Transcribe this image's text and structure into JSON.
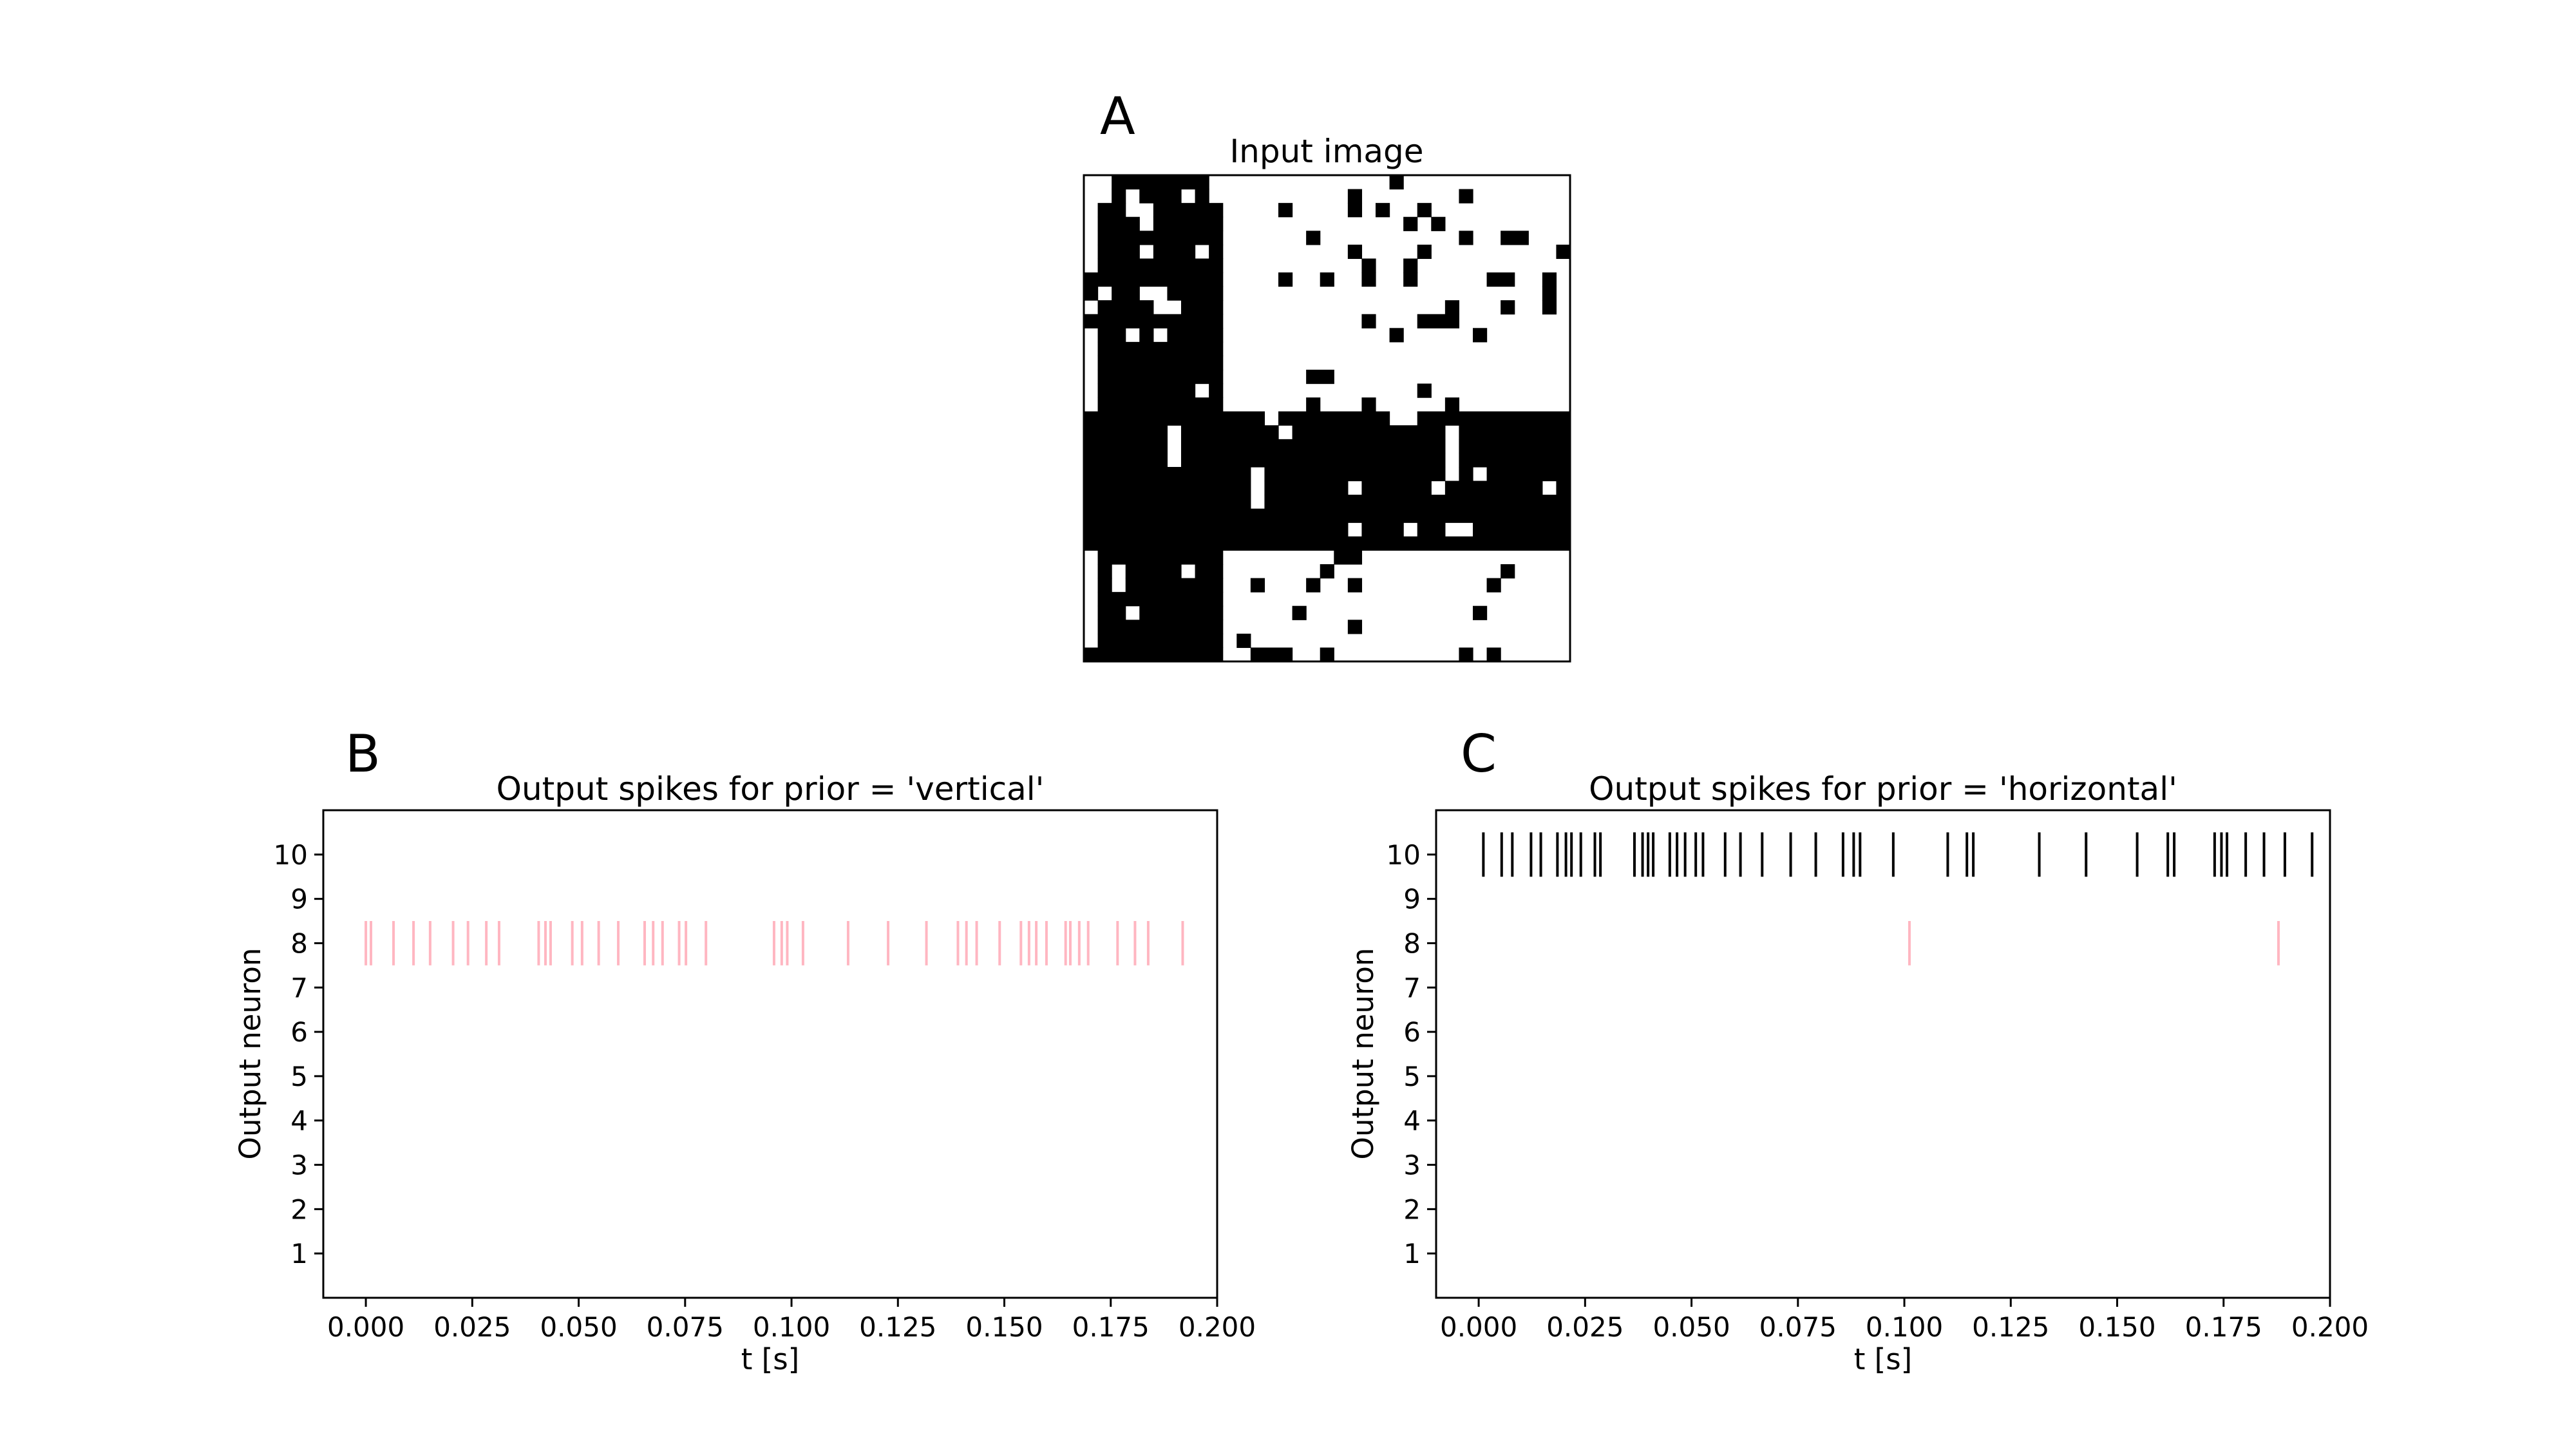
{
  "panels": {
    "a": "A",
    "b": "B",
    "c": "C"
  },
  "colors": {
    "spike_pink": "#ffb6c1",
    "spike_black": "#000000",
    "pixel_on": "#000000",
    "pixel_off": "#ffffff"
  },
  "chart_data": [
    {
      "type": "heatmap",
      "title": "Input image",
      "grid_size": [
        35,
        35
      ],
      "encoding": "black pixels listed per row as inclusive column ranges [start, end]; rows/cols indexed top-left",
      "rows": [
        [
          [
            2,
            8
          ],
          [
            22,
            22
          ]
        ],
        [
          [
            2,
            2
          ],
          [
            4,
            6
          ],
          [
            8,
            8
          ],
          [
            19,
            19
          ],
          [
            27,
            27
          ]
        ],
        [
          [
            1,
            2
          ],
          [
            5,
            9
          ],
          [
            14,
            14
          ],
          [
            19,
            19
          ],
          [
            21,
            21
          ],
          [
            24,
            24
          ]
        ],
        [
          [
            1,
            3
          ],
          [
            5,
            9
          ],
          [
            23,
            23
          ],
          [
            25,
            25
          ]
        ],
        [
          [
            1,
            9
          ],
          [
            16,
            16
          ],
          [
            27,
            27
          ],
          [
            30,
            31
          ]
        ],
        [
          [
            1,
            3
          ],
          [
            5,
            7
          ],
          [
            9,
            9
          ],
          [
            19,
            19
          ],
          [
            24,
            24
          ],
          [
            34,
            34
          ]
        ],
        [
          [
            1,
            9
          ],
          [
            20,
            20
          ],
          [
            23,
            23
          ]
        ],
        [
          [
            0,
            9
          ],
          [
            14,
            14
          ],
          [
            17,
            17
          ],
          [
            20,
            20
          ],
          [
            23,
            23
          ],
          [
            29,
            30
          ],
          [
            33,
            33
          ]
        ],
        [
          [
            0,
            0
          ],
          [
            2,
            3
          ],
          [
            6,
            9
          ],
          [
            33,
            33
          ]
        ],
        [
          [
            1,
            4
          ],
          [
            7,
            9
          ],
          [
            26,
            26
          ],
          [
            30,
            30
          ],
          [
            33,
            33
          ]
        ],
        [
          [
            0,
            9
          ],
          [
            20,
            20
          ],
          [
            24,
            26
          ]
        ],
        [
          [
            1,
            2
          ],
          [
            4,
            4
          ],
          [
            6,
            9
          ],
          [
            22,
            22
          ],
          [
            28,
            28
          ]
        ],
        [
          [
            1,
            9
          ]
        ],
        [
          [
            1,
            9
          ]
        ],
        [
          [
            1,
            9
          ],
          [
            16,
            17
          ]
        ],
        [
          [
            1,
            7
          ],
          [
            9,
            9
          ],
          [
            24,
            24
          ]
        ],
        [
          [
            1,
            9
          ],
          [
            16,
            16
          ],
          [
            20,
            20
          ],
          [
            26,
            26
          ]
        ],
        [
          [
            0,
            12
          ],
          [
            14,
            21
          ],
          [
            24,
            34
          ]
        ],
        [
          [
            0,
            5
          ],
          [
            7,
            13
          ],
          [
            15,
            25
          ],
          [
            27,
            34
          ]
        ],
        [
          [
            0,
            5
          ],
          [
            7,
            25
          ],
          [
            27,
            34
          ]
        ],
        [
          [
            0,
            5
          ],
          [
            7,
            25
          ],
          [
            27,
            34
          ]
        ],
        [
          [
            0,
            11
          ],
          [
            13,
            25
          ],
          [
            27,
            27
          ],
          [
            29,
            34
          ]
        ],
        [
          [
            0,
            11
          ],
          [
            13,
            18
          ],
          [
            20,
            24
          ],
          [
            26,
            32
          ],
          [
            34,
            34
          ]
        ],
        [
          [
            0,
            11
          ],
          [
            13,
            34
          ]
        ],
        [
          [
            0,
            34
          ]
        ],
        [
          [
            0,
            18
          ],
          [
            20,
            22
          ],
          [
            24,
            25
          ],
          [
            28,
            34
          ]
        ],
        [
          [
            0,
            34
          ]
        ],
        [
          [
            1,
            9
          ],
          [
            18,
            19
          ]
        ],
        [
          [
            1,
            1
          ],
          [
            3,
            6
          ],
          [
            8,
            9
          ],
          [
            17,
            17
          ],
          [
            30,
            30
          ]
        ],
        [
          [
            1,
            1
          ],
          [
            3,
            9
          ],
          [
            12,
            12
          ],
          [
            16,
            16
          ],
          [
            19,
            19
          ],
          [
            29,
            29
          ]
        ],
        [
          [
            1,
            9
          ]
        ],
        [
          [
            1,
            2
          ],
          [
            4,
            9
          ],
          [
            15,
            15
          ],
          [
            28,
            28
          ]
        ],
        [
          [
            1,
            9
          ],
          [
            19,
            19
          ]
        ],
        [
          [
            1,
            9
          ],
          [
            11,
            11
          ]
        ],
        [
          [
            0,
            9
          ],
          [
            12,
            14
          ],
          [
            17,
            17
          ],
          [
            27,
            27
          ],
          [
            29,
            29
          ]
        ]
      ]
    },
    {
      "type": "scatter",
      "mark": "spike",
      "title": "Output spikes for prior = 'vertical'",
      "xlabel": "t [s]",
      "ylabel": "Output neuron",
      "xlim": [
        -0.01,
        0.2
      ],
      "ylim": [
        0,
        11
      ],
      "xticks": [
        "0.000",
        "0.025",
        "0.050",
        "0.075",
        "0.100",
        "0.125",
        "0.150",
        "0.175",
        "0.200"
      ],
      "yticks": [
        "1",
        "2",
        "3",
        "4",
        "5",
        "6",
        "7",
        "8",
        "9",
        "10"
      ],
      "series": [
        {
          "neuron": 8,
          "color": "#ffb6c1",
          "spikes": [
            0.0,
            0.0012,
            0.0065,
            0.0112,
            0.0151,
            0.0205,
            0.024,
            0.0283,
            0.0313,
            0.0406,
            0.0422,
            0.0434,
            0.0485,
            0.0508,
            0.0547,
            0.0593,
            0.0655,
            0.0675,
            0.0697,
            0.0736,
            0.0752,
            0.0799,
            0.0959,
            0.0977,
            0.099,
            0.1027,
            0.1133,
            0.1227,
            0.1317,
            0.1391,
            0.1411,
            0.1435,
            0.1489,
            0.1539,
            0.1558,
            0.1575,
            0.1599,
            0.1644,
            0.1655,
            0.1676,
            0.1697,
            0.1766,
            0.1807,
            0.1838,
            0.1919
          ]
        }
      ]
    },
    {
      "type": "scatter",
      "mark": "spike",
      "title": "Output spikes for prior = 'horizontal'",
      "xlabel": "t [s]",
      "ylabel": "Output neuron",
      "xlim": [
        -0.01,
        0.2
      ],
      "ylim": [
        0,
        11
      ],
      "xticks": [
        "0.000",
        "0.025",
        "0.050",
        "0.075",
        "0.100",
        "0.125",
        "0.150",
        "0.175",
        "0.200"
      ],
      "yticks": [
        "1",
        "2",
        "3",
        "4",
        "5",
        "6",
        "7",
        "8",
        "9",
        "10"
      ],
      "series": [
        {
          "neuron": 10,
          "color": "#000000",
          "spikes": [
            0.0011,
            0.0054,
            0.0079,
            0.0123,
            0.0146,
            0.0185,
            0.0205,
            0.0218,
            0.024,
            0.0273,
            0.0286,
            0.0366,
            0.0385,
            0.0398,
            0.041,
            0.0449,
            0.0466,
            0.0485,
            0.051,
            0.0527,
            0.0579,
            0.0615,
            0.0666,
            0.0733,
            0.0792,
            0.0856,
            0.0881,
            0.0896,
            0.0974,
            0.1102,
            0.1147,
            0.1162,
            0.1317,
            0.1427,
            0.1547,
            0.1619,
            0.1634,
            0.1729,
            0.1745,
            0.1758,
            0.1802,
            0.1845,
            0.1894,
            0.1958
          ]
        },
        {
          "neuron": 8,
          "color": "#ffb6c1",
          "spikes": [
            0.1012,
            0.1879
          ]
        }
      ]
    }
  ]
}
